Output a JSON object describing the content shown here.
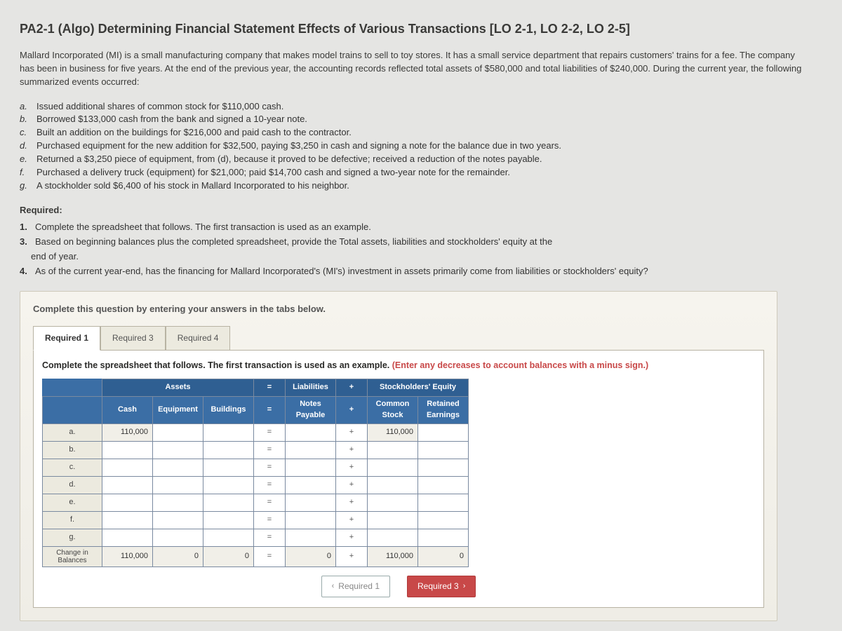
{
  "title": "PA2-1 (Algo) Determining Financial Statement Effects of Various Transactions [LO 2-1, LO 2-2, LO 2-5]",
  "intro": "Mallard Incorporated (MI) is a small manufacturing company that makes model trains to sell to toy stores. It has a small service department that repairs customers' trains for a fee. The company has been in business for five years. At the end of the previous year, the accounting records reflected total assets of $580,000 and total liabilities of $240,000. During the current year, the following summarized events occurred:",
  "events": [
    {
      "l": "a.",
      "t": "Issued additional shares of common stock for $110,000 cash."
    },
    {
      "l": "b.",
      "t": "Borrowed $133,000 cash from the bank and signed a 10-year note."
    },
    {
      "l": "c.",
      "t": "Built an addition on the buildings for $216,000 and paid cash to the contractor."
    },
    {
      "l": "d.",
      "t": "Purchased equipment for the new addition for $32,500, paying $3,250 in cash and signing a note for the balance due in two years."
    },
    {
      "l": "e.",
      "t": "Returned a $3,250 piece of equipment, from (d), because it proved to be defective; received a reduction of the notes payable."
    },
    {
      "l": "f.",
      "t": "Purchased a delivery truck (equipment) for $21,000; paid $14,700 cash and signed a two-year note for the remainder."
    },
    {
      "l": "g.",
      "t": "A stockholder sold $6,400 of his stock in Mallard Incorporated to his neighbor."
    }
  ],
  "required_head": "Required:",
  "required": [
    {
      "n": "1.",
      "t": "Complete the spreadsheet that follows. The first transaction is used as an example."
    },
    {
      "n": "3.",
      "t": "Based on beginning balances plus the completed spreadsheet, provide the Total assets, liabilities and stockholders' equity at the end of year.",
      "indent": "end of year."
    },
    {
      "n": "4.",
      "t": "As of the current year-end, has the financing for Mallard Incorporated's (MI's) investment in assets primarily come from liabilities or stockholders' equity?"
    }
  ],
  "sheet_hint": "Complete this question by entering your answers in the tabs below.",
  "tabs": [
    "Required 1",
    "Required 3",
    "Required 4"
  ],
  "tab_instr": "Complete the spreadsheet that follows. The first transaction is used as an example.",
  "tab_instr_hint": "(Enter any decreases to account balances with a minus sign.)",
  "headers": {
    "assets": "Assets",
    "liab": "Liabilities",
    "se": "Stockholders' Equity",
    "cash": "Cash",
    "equip": "Equipment",
    "bld": "Buildings",
    "np": "Notes Payable",
    "cs": "Common Stock",
    "re": "Retained Earnings"
  },
  "rows": [
    "a.",
    "b.",
    "c.",
    "d.",
    "e.",
    "f.",
    "g.",
    "Change in Balances"
  ],
  "vals": {
    "a_cash": "110,000",
    "a_cs": "110,000",
    "tot_cash": "110,000",
    "tot_equip": "0",
    "tot_bld": "0",
    "tot_np": "0",
    "tot_cs": "110,000",
    "tot_re": "0"
  },
  "nav": {
    "prev": "Required 1",
    "next": "Required 3"
  },
  "chev": {
    "left": "‹",
    "right": "›"
  },
  "sym": {
    "eq": "=",
    "plus": "+"
  }
}
